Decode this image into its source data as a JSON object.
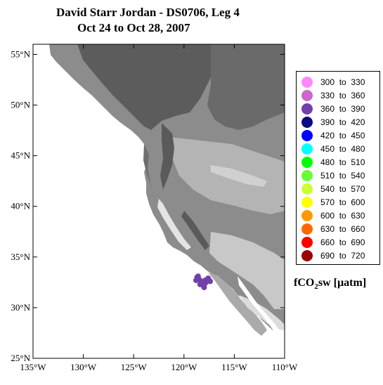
{
  "title_line1": "David Starr Jordan - DS0706, Leg 4",
  "title_line2": "Oct 24 to Oct 28, 2007",
  "map": {
    "lon_range": [
      -135,
      -110
    ],
    "lat_range": [
      25,
      56
    ],
    "lat_ticks": [
      {
        "value": 55,
        "label": "55°N"
      },
      {
        "value": 50,
        "label": "50°N"
      },
      {
        "value": 45,
        "label": "45°N"
      },
      {
        "value": 40,
        "label": "40°N"
      },
      {
        "value": 35,
        "label": "35°N"
      },
      {
        "value": 30,
        "label": "30°N"
      },
      {
        "value": 25,
        "label": "25°N"
      }
    ],
    "lon_ticks": [
      {
        "value": -135,
        "label": "135°W"
      },
      {
        "value": -130,
        "label": "130°W"
      },
      {
        "value": -125,
        "label": "125°W"
      },
      {
        "value": -120,
        "label": "120°W"
      },
      {
        "value": -115,
        "label": "115°W"
      },
      {
        "value": -110,
        "label": "110°W"
      }
    ],
    "ocean_color": "#ffffff",
    "land_colors": [
      "#5a5a5a",
      "#7a7a7a",
      "#9a9a9a",
      "#c4c4c4",
      "#e0e0e0"
    ],
    "track_points": [
      {
        "lon": -118.7,
        "lat": 33.0,
        "color": "#7340a8"
      },
      {
        "lon": -118.5,
        "lat": 32.8,
        "color": "#7340a8"
      },
      {
        "lon": -118.3,
        "lat": 32.6,
        "color": "#7340a8"
      },
      {
        "lon": -118.2,
        "lat": 32.4,
        "color": "#7340a8"
      },
      {
        "lon": -118.4,
        "lat": 32.3,
        "color": "#7340a8"
      },
      {
        "lon": -118.1,
        "lat": 32.2,
        "color": "#7340a8"
      },
      {
        "lon": -117.9,
        "lat": 32.4,
        "color": "#7340a8"
      },
      {
        "lon": -117.7,
        "lat": 32.6,
        "color": "#7340a8"
      },
      {
        "lon": -117.5,
        "lat": 32.7,
        "color": "#7340a8"
      },
      {
        "lon": -117.6,
        "lat": 32.9,
        "color": "#7340a8"
      },
      {
        "lon": -117.9,
        "lat": 32.7,
        "color": "#7340a8"
      },
      {
        "lon": -118.6,
        "lat": 33.1,
        "color": "#7340a8"
      },
      {
        "lon": -118.8,
        "lat": 32.7,
        "color": "#7340a8"
      },
      {
        "lon": -118.0,
        "lat": 32.0,
        "color": "#7340a8"
      },
      {
        "lon": -117.4,
        "lat": 32.6,
        "color": "#7340a8"
      }
    ]
  },
  "legend": [
    {
      "label": "300  to  330",
      "color": "#ff88ff"
    },
    {
      "label": "330  to  360",
      "color": "#cc66cc"
    },
    {
      "label": "360  to  390",
      "color": "#7340a8"
    },
    {
      "label": "390  to  420",
      "color": "#0a0a80"
    },
    {
      "label": "420  to  450",
      "color": "#0000ff"
    },
    {
      "label": "450  to  480",
      "color": "#00ffff"
    },
    {
      "label": "480  to  510",
      "color": "#00ff00"
    },
    {
      "label": "510  to  540",
      "color": "#66ff33"
    },
    {
      "label": "540  to  570",
      "color": "#ccff33"
    },
    {
      "label": "570  to  600",
      "color": "#ffff00"
    },
    {
      "label": "600  to  630",
      "color": "#ff9900"
    },
    {
      "label": "630  to  660",
      "color": "#ff6600"
    },
    {
      "label": "660  to  690",
      "color": "#ff0000"
    },
    {
      "label": "690  to  720",
      "color": "#990000"
    }
  ],
  "unit_main": "fCO",
  "unit_sub": "2",
  "unit_tail": "sw  [µatm]"
}
